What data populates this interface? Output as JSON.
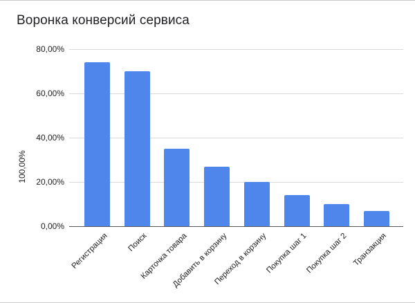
{
  "chart_data": {
    "type": "bar",
    "title": "Воронка конверсий сервиса",
    "xlabel": "",
    "ylabel": "100,00%",
    "categories": [
      "Регистрация",
      "Поиск",
      "Карточка товара",
      "Добавить в корзину",
      "Переход в корзину",
      "Покупка шаг 1",
      "Покупка шаг 2",
      "Транзакция"
    ],
    "values": [
      74,
      70,
      35,
      27,
      20,
      14,
      10,
      7
    ],
    "ylim": [
      0,
      80
    ],
    "yticks": [
      0,
      20,
      40,
      60,
      80
    ],
    "ytick_labels": [
      "0,00%",
      "20,00%",
      "40,00%",
      "60,00%",
      "80,00%"
    ],
    "grid": true,
    "legend": null,
    "bar_color": "#4f86ec",
    "x_label_rotation": -45
  },
  "chart": {
    "title": "Воронка конверсий сервиса",
    "y_axis_title": "100,00%",
    "ticks": [
      {
        "label": "80,00%",
        "value": 80
      },
      {
        "label": "60,00%",
        "value": 60
      },
      {
        "label": "40,00%",
        "value": 40
      },
      {
        "label": "20,00%",
        "value": 20
      },
      {
        "label": "0,00%",
        "value": 0
      }
    ],
    "bars": [
      {
        "label": "Регистрация",
        "value": 74
      },
      {
        "label": "Поиск",
        "value": 70
      },
      {
        "label": "Карточка товара",
        "value": 35
      },
      {
        "label": "Добавить в корзину",
        "value": 27
      },
      {
        "label": "Переход в корзину",
        "value": 20
      },
      {
        "label": "Покупка шаг 1",
        "value": 14
      },
      {
        "label": "Покупка шаг 2",
        "value": 10
      },
      {
        "label": "Транзакция",
        "value": 7
      }
    ]
  }
}
